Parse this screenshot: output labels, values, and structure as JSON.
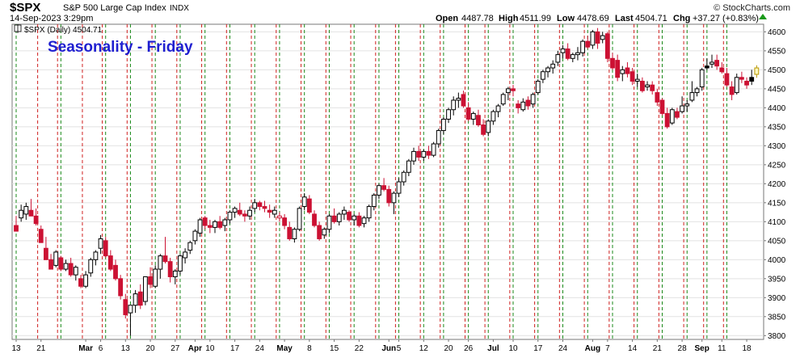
{
  "header": {
    "symbol": "$SPX",
    "description": "S&P 500 Large Cap Index",
    "exchange": "INDX",
    "date": "14-Sep-2023 3:29pm",
    "open_label": "Open",
    "open": "4487.78",
    "high_label": "High",
    "high": "4511.99",
    "low_label": "Low",
    "low": "4478.69",
    "last_label": "Last",
    "last": "4504.71",
    "chg_label": "Chg",
    "chg": "+37.27 (+0.83%)",
    "watermark": "© StockCharts.com"
  },
  "legend": {
    "text": "$SPX (Daily) 4504.71"
  },
  "chart_data": {
    "type": "candlestick",
    "title": "Seasonality - Friday",
    "ylim": [
      3790,
      4620
    ],
    "y_ticks": [
      3800,
      3850,
      3900,
      3950,
      4000,
      4050,
      4100,
      4150,
      4200,
      4250,
      4300,
      4350,
      4400,
      4450,
      4500,
      4550,
      4600
    ],
    "x_tick_labels": [
      {
        "i": 0,
        "label": "13"
      },
      {
        "i": 5,
        "label": "21"
      },
      {
        "i": 14,
        "label": "Mar"
      },
      {
        "i": 17,
        "label": "6"
      },
      {
        "i": 22,
        "label": "13"
      },
      {
        "i": 27,
        "label": "20"
      },
      {
        "i": 32,
        "label": "27"
      },
      {
        "i": 36,
        "label": "Apr"
      },
      {
        "i": 39,
        "label": "10"
      },
      {
        "i": 44,
        "label": "17"
      },
      {
        "i": 49,
        "label": "24"
      },
      {
        "i": 54,
        "label": "May"
      },
      {
        "i": 59,
        "label": "8"
      },
      {
        "i": 64,
        "label": "15"
      },
      {
        "i": 69,
        "label": "22"
      },
      {
        "i": 75,
        "label": "Jun"
      },
      {
        "i": 77,
        "label": "5"
      },
      {
        "i": 82,
        "label": "12"
      },
      {
        "i": 87,
        "label": "20"
      },
      {
        "i": 91,
        "label": "26"
      },
      {
        "i": 96,
        "label": "Jul"
      },
      {
        "i": 100,
        "label": "10"
      },
      {
        "i": 105,
        "label": "17"
      },
      {
        "i": 110,
        "label": "24"
      },
      {
        "i": 116,
        "label": "Aug"
      },
      {
        "i": 119,
        "label": "7"
      },
      {
        "i": 124,
        "label": "14"
      },
      {
        "i": 129,
        "label": "21"
      },
      {
        "i": 134,
        "label": "28"
      },
      {
        "i": 138,
        "label": "Sep"
      },
      {
        "i": 142,
        "label": "11"
      },
      {
        "i": 147,
        "label": "18"
      }
    ],
    "monday_lines": [
      0,
      9,
      18,
      23,
      28,
      33,
      38,
      43,
      48,
      53,
      58,
      63,
      68,
      73,
      77,
      82,
      86,
      91,
      95,
      100,
      105,
      110,
      115,
      120,
      125,
      130,
      135,
      139,
      143
    ],
    "friday_lines": [
      4,
      8,
      13,
      17,
      22,
      27,
      32,
      37,
      42,
      47,
      52,
      57,
      62,
      67,
      72,
      76,
      81,
      85,
      90,
      94,
      99,
      104,
      109,
      114,
      119,
      124,
      129,
      134,
      138,
      142
    ],
    "candles": [
      [
        4090,
        4115,
        4075,
        4075
      ],
      [
        4110,
        4145,
        4100,
        4130
      ],
      [
        4120,
        4150,
        4105,
        4140
      ],
      [
        4130,
        4160,
        4115,
        4115
      ],
      [
        4115,
        4135,
        4090,
        4095
      ],
      [
        4080,
        4090,
        4045,
        4045
      ],
      [
        4030,
        4060,
        4000,
        4000
      ],
      [
        4000,
        4015,
        3975,
        3975
      ],
      [
        3985,
        4025,
        3980,
        4020
      ],
      [
        4005,
        4010,
        3970,
        3975
      ],
      [
        3975,
        4000,
        3970,
        3990
      ],
      [
        3990,
        4005,
        3955,
        3960
      ],
      [
        3960,
        3985,
        3945,
        3980
      ],
      [
        3950,
        3960,
        3925,
        3930
      ],
      [
        3930,
        3970,
        3925,
        3960
      ],
      [
        3965,
        4005,
        3955,
        4000
      ],
      [
        4000,
        4025,
        3985,
        4020
      ],
      [
        4030,
        4065,
        4015,
        4055
      ],
      [
        4050,
        4060,
        4005,
        4010
      ],
      [
        4010,
        4025,
        3970,
        3975
      ],
      [
        3985,
        4000,
        3945,
        3950
      ],
      [
        3950,
        3960,
        3895,
        3905
      ],
      [
        3895,
        3910,
        3845,
        3855
      ],
      [
        3860,
        3880,
        3800,
        3880
      ],
      [
        3880,
        3920,
        3860,
        3910
      ],
      [
        3915,
        3935,
        3870,
        3880
      ],
      [
        3890,
        3955,
        3880,
        3955
      ],
      [
        3955,
        3980,
        3925,
        3935
      ],
      [
        3930,
        3985,
        3925,
        3975
      ],
      [
        3975,
        4015,
        3950,
        4010
      ],
      [
        4010,
        4060,
        3990,
        3995
      ],
      [
        3995,
        4005,
        3940,
        3955
      ],
      [
        3955,
        3975,
        3935,
        3970
      ],
      [
        3970,
        4015,
        3960,
        4010
      ],
      [
        4005,
        4030,
        3990,
        4020
      ],
      [
        4025,
        4050,
        4015,
        4045
      ],
      [
        4050,
        4080,
        4040,
        4075
      ],
      [
        4070,
        4110,
        4060,
        4105
      ],
      [
        4110,
        4115,
        4080,
        4090
      ],
      [
        4090,
        4105,
        4070,
        4085
      ],
      [
        4085,
        4105,
        4070,
        4100
      ],
      [
        4100,
        4115,
        4080,
        4085
      ],
      [
        4090,
        4110,
        4075,
        4105
      ],
      [
        4105,
        4130,
        4095,
        4125
      ],
      [
        4125,
        4140,
        4110,
        4135
      ],
      [
        4130,
        4150,
        4115,
        4120
      ],
      [
        4120,
        4130,
        4100,
        4115
      ],
      [
        4115,
        4140,
        4105,
        4130
      ],
      [
        4135,
        4160,
        4125,
        4150
      ],
      [
        4150,
        4155,
        4130,
        4140
      ],
      [
        4140,
        4155,
        4125,
        4135
      ],
      [
        4130,
        4145,
        4110,
        4125
      ],
      [
        4120,
        4140,
        4110,
        4130
      ],
      [
        4110,
        4125,
        4100,
        4115
      ],
      [
        4110,
        4120,
        4080,
        4090
      ],
      [
        4085,
        4100,
        4050,
        4055
      ],
      [
        4055,
        4085,
        4045,
        4080
      ],
      [
        4080,
        4140,
        4075,
        4135
      ],
      [
        4140,
        4175,
        4130,
        4165
      ],
      [
        4160,
        4170,
        4120,
        4125
      ],
      [
        4120,
        4130,
        4085,
        4090
      ],
      [
        4090,
        4100,
        4050,
        4055
      ],
      [
        4065,
        4085,
        4055,
        4080
      ],
      [
        4080,
        4120,
        4070,
        4115
      ],
      [
        4115,
        4135,
        4095,
        4100
      ],
      [
        4100,
        4125,
        4090,
        4120
      ],
      [
        4120,
        4140,
        4105,
        4130
      ],
      [
        4125,
        4130,
        4100,
        4105
      ],
      [
        4105,
        4120,
        4090,
        4115
      ],
      [
        4115,
        4125,
        4085,
        4090
      ],
      [
        4095,
        4115,
        4085,
        4110
      ],
      [
        4110,
        4145,
        4100,
        4140
      ],
      [
        4140,
        4175,
        4130,
        4170
      ],
      [
        4170,
        4200,
        4160,
        4195
      ],
      [
        4195,
        4215,
        4180,
        4185
      ],
      [
        4185,
        4195,
        4140,
        4150
      ],
      [
        4150,
        4180,
        4120,
        4175
      ],
      [
        4175,
        4215,
        4165,
        4205
      ],
      [
        4205,
        4235,
        4195,
        4230
      ],
      [
        4230,
        4265,
        4220,
        4260
      ],
      [
        4260,
        4295,
        4250,
        4285
      ],
      [
        4285,
        4300,
        4260,
        4270
      ],
      [
        4270,
        4290,
        4260,
        4285
      ],
      [
        4285,
        4300,
        4265,
        4275
      ],
      [
        4275,
        4310,
        4270,
        4305
      ],
      [
        4305,
        4345,
        4295,
        4340
      ],
      [
        4340,
        4375,
        4330,
        4370
      ],
      [
        4370,
        4400,
        4360,
        4395
      ],
      [
        4395,
        4430,
        4380,
        4420
      ],
      [
        4420,
        4440,
        4400,
        4425
      ],
      [
        4435,
        4445,
        4400,
        4405
      ],
      [
        4400,
        4415,
        4365,
        4370
      ],
      [
        4370,
        4390,
        4355,
        4385
      ],
      [
        4380,
        4395,
        4350,
        4355
      ],
      [
        4355,
        4370,
        4325,
        4330
      ],
      [
        4335,
        4370,
        4325,
        4365
      ],
      [
        4365,
        4395,
        4355,
        4390
      ],
      [
        4390,
        4410,
        4375,
        4405
      ],
      [
        4410,
        4440,
        4405,
        4435
      ],
      [
        4440,
        4455,
        4420,
        4450
      ],
      [
        4450,
        4460,
        4430,
        4445
      ],
      [
        4410,
        4420,
        4385,
        4400
      ],
      [
        4395,
        4425,
        4390,
        4415
      ],
      [
        4420,
        4430,
        4395,
        4405
      ],
      [
        4410,
        4440,
        4400,
        4435
      ],
      [
        4440,
        4475,
        4435,
        4470
      ],
      [
        4475,
        4500,
        4465,
        4495
      ],
      [
        4495,
        4510,
        4480,
        4505
      ],
      [
        4505,
        4525,
        4490,
        4515
      ],
      [
        4520,
        4550,
        4510,
        4540
      ],
      [
        4545,
        4565,
        4530,
        4555
      ],
      [
        4555,
        4570,
        4525,
        4530
      ],
      [
        4530,
        4545,
        4520,
        4540
      ],
      [
        4540,
        4560,
        4525,
        4545
      ],
      [
        4545,
        4580,
        4535,
        4575
      ],
      [
        4575,
        4590,
        4555,
        4560
      ],
      [
        4565,
        4605,
        4555,
        4600
      ],
      [
        4600,
        4610,
        4555,
        4570
      ],
      [
        4580,
        4600,
        4570,
        4590
      ],
      [
        4595,
        4600,
        4520,
        4530
      ],
      [
        4530,
        4545,
        4500,
        4505
      ],
      [
        4525,
        4540,
        4470,
        4480
      ],
      [
        4490,
        4510,
        4470,
        4500
      ],
      [
        4505,
        4520,
        4480,
        4490
      ],
      [
        4495,
        4505,
        4460,
        4470
      ],
      [
        4470,
        4490,
        4455,
        4475
      ],
      [
        4470,
        4480,
        4440,
        4445
      ],
      [
        4455,
        4470,
        4445,
        4460
      ],
      [
        4460,
        4470,
        4435,
        4445
      ],
      [
        4440,
        4450,
        4405,
        4415
      ],
      [
        4420,
        4425,
        4380,
        4385
      ],
      [
        4385,
        4400,
        4345,
        4350
      ],
      [
        4360,
        4400,
        4355,
        4395
      ],
      [
        4390,
        4400,
        4370,
        4375
      ],
      [
        4390,
        4430,
        4385,
        4405
      ],
      [
        4405,
        4420,
        4390,
        4410
      ],
      [
        4420,
        4470,
        4415,
        4440
      ],
      [
        4440,
        4455,
        4430,
        4450
      ],
      [
        4455,
        4505,
        4445,
        4500
      ],
      [
        4510,
        4530,
        4500,
        4505
      ],
      [
        4515,
        4540,
        4505,
        4520
      ],
      [
        4525,
        4540,
        4500,
        4510
      ],
      [
        4505,
        4520,
        4490,
        4495
      ],
      [
        4490,
        4505,
        4455,
        4460
      ],
      [
        4455,
        4470,
        4420,
        4435
      ],
      [
        4440,
        4490,
        4435,
        4480
      ],
      [
        4480,
        4495,
        4465,
        4475
      ],
      [
        4470,
        4480,
        4450,
        4460
      ],
      [
        4480,
        4500,
        4460,
        4470
      ],
      [
        4488,
        4512,
        4479,
        4505
      ]
    ]
  }
}
